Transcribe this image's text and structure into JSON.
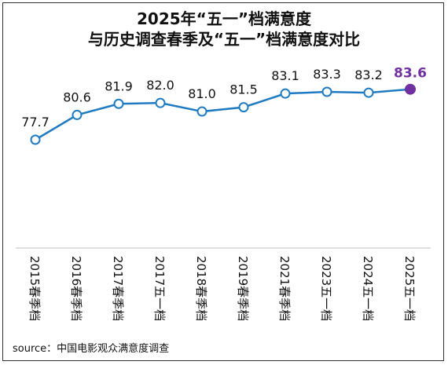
{
  "title_lines": [
    "2025年“五一”档满意度",
    "与历史调查春季及“五一”档满意度对比"
  ],
  "source": "source：中国电影观众满意度调查",
  "colors": {
    "line": "#1f7bc1",
    "highlight": "#7030a0",
    "text": "#111111",
    "axis": "#bfbfbf"
  },
  "chart_data": {
    "type": "line",
    "title": "2025年“五一”档满意度 与历史调查春季及“五一”档满意度对比",
    "categories": [
      "2015春季档",
      "2016春季档",
      "2017春季档",
      "2017五一档",
      "2018春季档",
      "2019春季档",
      "2021春季档",
      "2023五一档",
      "2024五一档",
      "2025五一档"
    ],
    "values": [
      77.7,
      80.6,
      81.9,
      82.0,
      81.0,
      81.5,
      83.1,
      83.3,
      83.2,
      83.6
    ],
    "labels": [
      "77.7",
      "80.6",
      "81.9",
      "82.0",
      "81.0",
      "81.5",
      "83.1",
      "83.3",
      "83.2",
      "83.6"
    ],
    "highlight_index": 9,
    "grid": false,
    "legend": "none"
  }
}
